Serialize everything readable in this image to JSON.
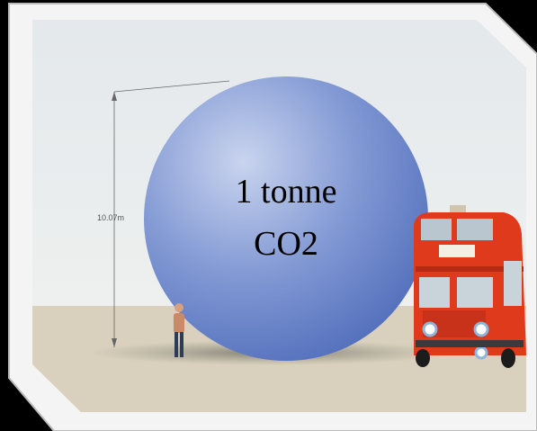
{
  "dimension_label": "10.07m",
  "sphere_label": {
    "line1": "1 tonne",
    "line2": "CO2"
  }
}
